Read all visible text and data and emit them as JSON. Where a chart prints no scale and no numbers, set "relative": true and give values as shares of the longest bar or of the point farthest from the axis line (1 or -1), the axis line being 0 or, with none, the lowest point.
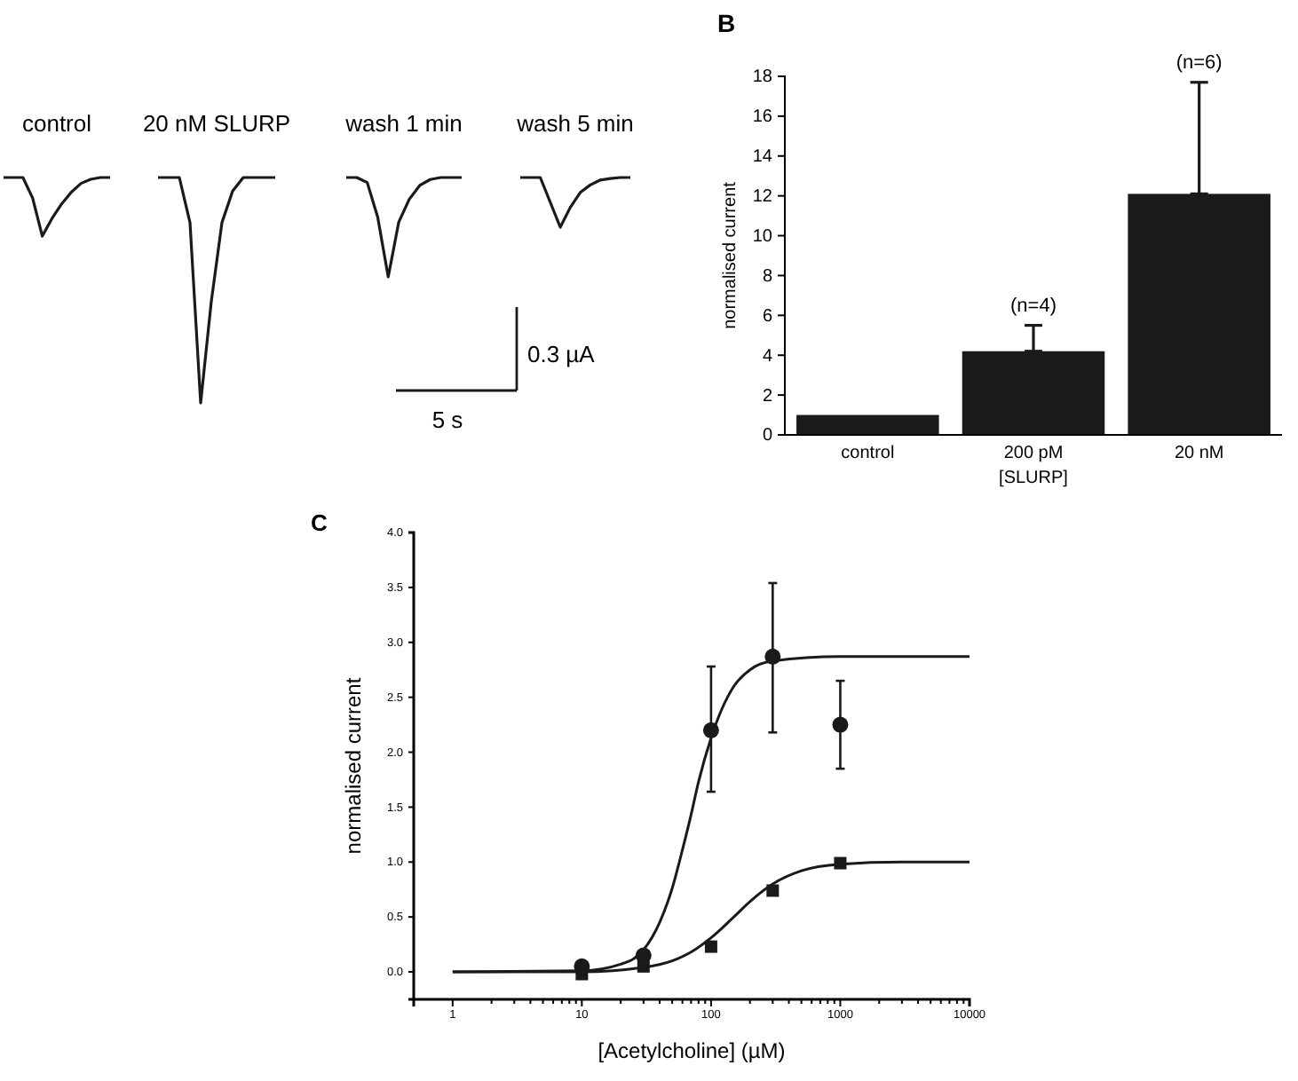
{
  "chart_data": [
    {
      "type": "line",
      "relative": true,
      "title": "control",
      "categories": [
        null,
        null,
        null,
        null,
        null,
        null,
        null,
        null,
        null,
        null,
        null,
        null
      ],
      "series": [
        {
          "color": "#1a1a1a",
          "values": [
            1,
            1,
            1,
            0.65,
            0,
            0.3,
            0.55,
            0.75,
            0.9,
            0.97,
            1,
            1
          ]
        }
      ]
    },
    {
      "type": "line",
      "relative": true,
      "title": "20 nM SLURP",
      "categories": [
        null,
        null,
        null,
        null,
        null,
        null,
        null,
        null,
        null,
        null,
        null,
        null
      ],
      "series": [
        {
          "color": "#1a1a1a",
          "values": [
            1,
            1,
            1,
            0.8,
            0,
            0.45,
            0.8,
            0.94,
            1,
            1,
            1,
            1
          ]
        }
      ]
    },
    {
      "type": "line",
      "relative": true,
      "title": "wash 1 min",
      "categories": [
        null,
        null,
        null,
        null,
        null,
        null,
        null,
        null,
        null,
        null,
        null,
        null
      ],
      "series": [
        {
          "color": "#1a1a1a",
          "values": [
            1,
            1,
            0.95,
            0.6,
            0,
            0.55,
            0.78,
            0.92,
            0.98,
            1,
            1,
            1
          ]
        }
      ]
    },
    {
      "type": "line",
      "relative": true,
      "title": "wash 5 min",
      "categories": [
        null,
        null,
        null,
        null,
        null,
        null,
        null,
        null,
        null,
        null,
        null,
        null
      ],
      "series": [
        {
          "color": "#1a1a1a",
          "values": [
            1,
            1,
            1,
            0.5,
            0,
            0.4,
            0.7,
            0.85,
            0.95,
            0.98,
            1,
            1
          ]
        }
      ]
    },
    {
      "type": "other",
      "annotations": [
        "0.3 µA",
        "5 s"
      ]
    },
    {
      "type": "bar",
      "title": "B",
      "ylabel": "normalised current",
      "xlabel": "[SLURP]",
      "categories": [
        "control",
        "200 pM",
        "20 nM"
      ],
      "values": [
        1,
        4.2,
        12.1
      ],
      "color": "#1a1a1a",
      "errors": [
        null,
        [
          4.2,
          5.5
        ],
        [
          12.1,
          17.7
        ]
      ],
      "ylim": [
        0,
        18
      ],
      "yticks": [
        0,
        2,
        4,
        6,
        8,
        10,
        12,
        14,
        16,
        18
      ],
      "annotations": [
        {
          "text": "(n=4)",
          "x": "200 pM",
          "y": 5.5
        },
        {
          "text": "(n=6)",
          "x": "20 nM",
          "y": 17.7
        }
      ]
    },
    {
      "type": "scatter",
      "title": "C",
      "xlabel": "[Acetylcholine] (µM)",
      "ylabel": "normalised current",
      "log": "x",
      "series": [
        {
          "type": "scatter",
          "marker": "circle",
          "color": "#1a1a1a",
          "x": [
            10,
            30,
            100,
            300,
            1000
          ],
          "values": [
            0.05,
            0.15,
            2.2,
            2.87,
            2.25
          ],
          "errors": [
            null,
            null,
            [
              1.64,
              2.78
            ],
            [
              2.18,
              3.54
            ],
            [
              1.85,
              2.65
            ]
          ]
        },
        {
          "type": "scatter",
          "marker": "square",
          "color": "#1a1a1a",
          "x": [
            10,
            30,
            100,
            300,
            1000
          ],
          "values": [
            -0.02,
            0.05,
            0.23,
            0.74,
            0.99
          ]
        },
        {
          "type": "line",
          "marker": "none",
          "color": "#1a1a1a",
          "x": [
            1,
            10,
            20,
            30,
            40,
            50,
            60,
            70,
            80,
            100,
            150,
            200,
            300,
            1000,
            10000
          ],
          "values": [
            0,
            0.01,
            0.07,
            0.2,
            0.45,
            0.76,
            1.11,
            1.43,
            1.73,
            2.13,
            2.6,
            2.75,
            2.83,
            2.87,
            2.87
          ]
        },
        {
          "type": "line",
          "marker": "none",
          "color": "#1a1a1a",
          "x": [
            1,
            10,
            30,
            50,
            70,
            100,
            150,
            200,
            300,
            500,
            1000,
            3000,
            10000
          ],
          "values": [
            0,
            0,
            0.04,
            0.1,
            0.18,
            0.31,
            0.5,
            0.64,
            0.8,
            0.92,
            0.98,
            1.0,
            1.0
          ]
        }
      ],
      "xlim": [
        0.5,
        10000
      ],
      "xticks": [
        1,
        {
          "value": 2,
          "label": null
        },
        {
          "value": 3,
          "label": null
        },
        {
          "value": 4,
          "label": null
        },
        {
          "value": 5,
          "label": null
        },
        {
          "value": 6,
          "label": null
        },
        {
          "value": 7,
          "label": null
        },
        {
          "value": 8,
          "label": null
        },
        {
          "value": 9,
          "label": null
        },
        10,
        {
          "value": 20,
          "label": null
        },
        {
          "value": 30,
          "label": null
        },
        {
          "value": 40,
          "label": null
        },
        {
          "value": 50,
          "label": null
        },
        {
          "value": 60,
          "label": null
        },
        {
          "value": 70,
          "label": null
        },
        {
          "value": 80,
          "label": null
        },
        {
          "value": 90,
          "label": null
        },
        100,
        {
          "value": 200,
          "label": null
        },
        {
          "value": 300,
          "label": null
        },
        {
          "value": 400,
          "label": null
        },
        {
          "value": 500,
          "label": null
        },
        {
          "value": 600,
          "label": null
        },
        {
          "value": 700,
          "label": null
        },
        {
          "value": 800,
          "label": null
        },
        {
          "value": 900,
          "label": null
        },
        1000,
        {
          "value": 2000,
          "label": null
        },
        {
          "value": 3000,
          "label": null
        },
        {
          "value": 4000,
          "label": null
        },
        {
          "value": 5000,
          "label": null
        },
        {
          "value": 6000,
          "label": null
        },
        {
          "value": 7000,
          "label": null
        },
        {
          "value": 8000,
          "label": null
        },
        {
          "value": 9000,
          "label": null
        },
        10000
      ],
      "ylim": [
        -0.25,
        4
      ],
      "yticks": [
        {
          "value": 0,
          "label": "0.0"
        },
        {
          "value": 0.5,
          "label": "0.5"
        },
        {
          "value": 1,
          "label": "1.0"
        },
        {
          "value": 1.5,
          "label": "1.5"
        },
        {
          "value": 2,
          "label": "2.0"
        },
        {
          "value": 2.5,
          "label": "2.5"
        },
        {
          "value": 3,
          "label": "3.0"
        },
        {
          "value": 3.5,
          "label": "3.5"
        },
        {
          "value": 4,
          "label": "4.0"
        }
      ]
    }
  ]
}
